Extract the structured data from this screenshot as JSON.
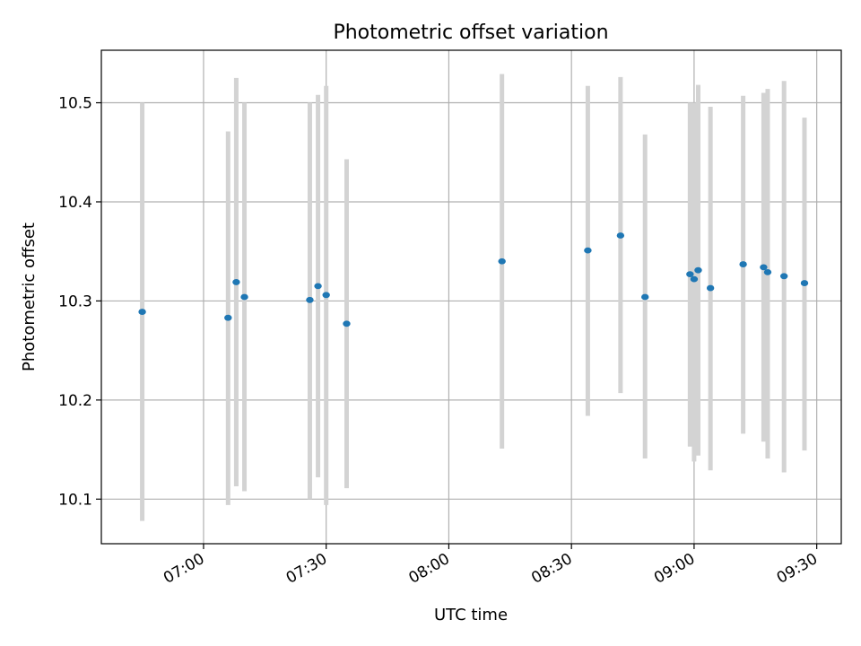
{
  "chart_data": {
    "type": "scatter",
    "title": "Photometric offset variation",
    "xlabel": "UTC time",
    "ylabel": "Photometric offset",
    "x_ticks": [
      "07:00",
      "07:30",
      "08:00",
      "08:30",
      "09:00",
      "09:30"
    ],
    "y_ticks": [
      "10.1",
      "10.2",
      "10.3",
      "10.4",
      "10.5"
    ],
    "xlim": [
      "06:35",
      "09:36"
    ],
    "ylim": [
      10.055,
      10.553
    ],
    "grid": true,
    "colors": {
      "marker": "#1f77b4",
      "errorbar": "#d3d3d3",
      "grid": "#b0b0b0"
    },
    "points": [
      {
        "x": "06:45",
        "y": 10.289,
        "ylo": 10.078,
        "yhi": 10.5
      },
      {
        "x": "07:06",
        "y": 10.283,
        "ylo": 10.094,
        "yhi": 10.471
      },
      {
        "x": "07:08",
        "y": 10.319,
        "ylo": 10.113,
        "yhi": 10.525
      },
      {
        "x": "07:10",
        "y": 10.304,
        "ylo": 10.108,
        "yhi": 10.5
      },
      {
        "x": "07:26",
        "y": 10.301,
        "ylo": 10.1,
        "yhi": 10.5
      },
      {
        "x": "07:28",
        "y": 10.315,
        "ylo": 10.122,
        "yhi": 10.508
      },
      {
        "x": "07:30",
        "y": 10.306,
        "ylo": 10.094,
        "yhi": 10.517
      },
      {
        "x": "07:35",
        "y": 10.277,
        "ylo": 10.111,
        "yhi": 10.443
      },
      {
        "x": "08:13",
        "y": 10.34,
        "ylo": 10.151,
        "yhi": 10.529
      },
      {
        "x": "08:34",
        "y": 10.351,
        "ylo": 10.184,
        "yhi": 10.517
      },
      {
        "x": "08:42",
        "y": 10.366,
        "ylo": 10.207,
        "yhi": 10.526
      },
      {
        "x": "08:48",
        "y": 10.304,
        "ylo": 10.141,
        "yhi": 10.468
      },
      {
        "x": "08:59",
        "y": 10.327,
        "ylo": 10.153,
        "yhi": 10.5
      },
      {
        "x": "09:00",
        "y": 10.322,
        "ylo": 10.138,
        "yhi": 10.5
      },
      {
        "x": "09:01",
        "y": 10.331,
        "ylo": 10.144,
        "yhi": 10.518
      },
      {
        "x": "09:04",
        "y": 10.313,
        "ylo": 10.129,
        "yhi": 10.496
      },
      {
        "x": "09:12",
        "y": 10.337,
        "ylo": 10.166,
        "yhi": 10.507
      },
      {
        "x": "09:17",
        "y": 10.334,
        "ylo": 10.158,
        "yhi": 10.51
      },
      {
        "x": "09:18",
        "y": 10.329,
        "ylo": 10.141,
        "yhi": 10.514
      },
      {
        "x": "09:22",
        "y": 10.325,
        "ylo": 10.127,
        "yhi": 10.522
      },
      {
        "x": "09:27",
        "y": 10.318,
        "ylo": 10.149,
        "yhi": 10.485
      }
    ]
  }
}
